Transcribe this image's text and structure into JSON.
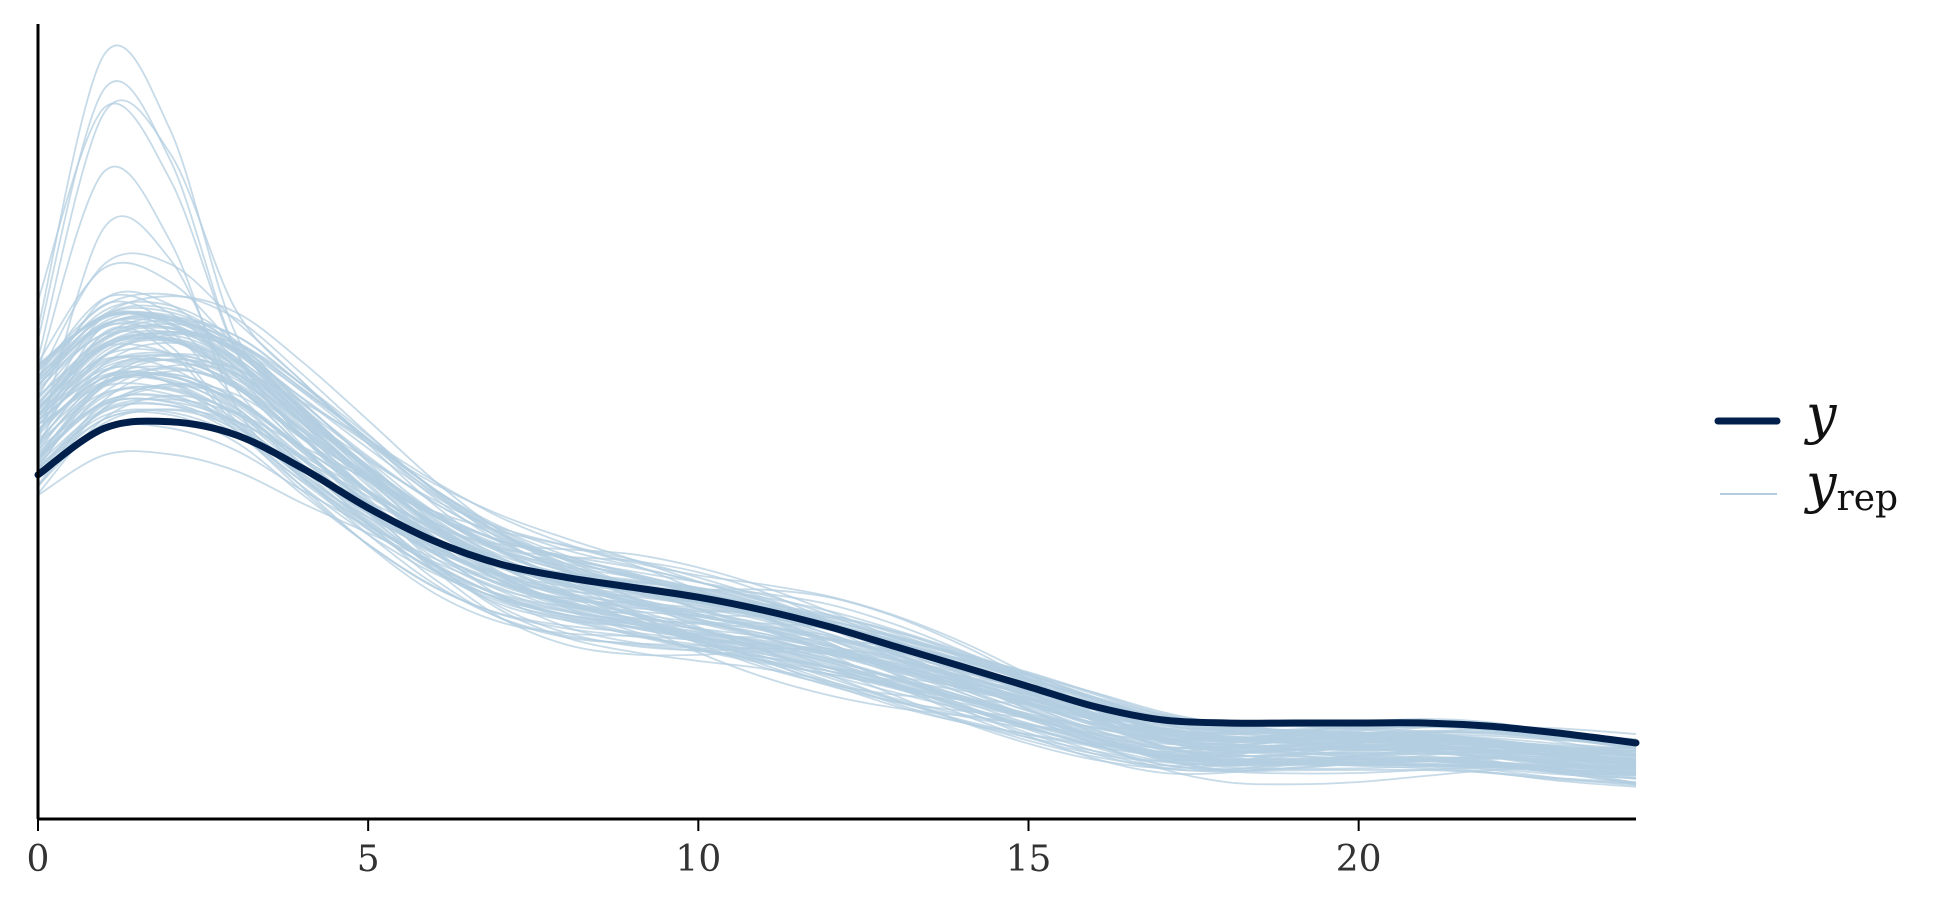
{
  "chart_data": {
    "type": "line",
    "title": "",
    "xlabel": "",
    "ylabel": "",
    "xlim": [
      0,
      24.2
    ],
    "ylim": [
      0,
      0.121
    ],
    "x_ticks": [
      0,
      5,
      10,
      15,
      20
    ],
    "x_tick_labels": [
      "0",
      "5",
      "10",
      "15",
      "20"
    ],
    "y_axis_tick_labels_shown": false,
    "grid": false,
    "legend_position": "right",
    "legend": [
      {
        "symbol": "y",
        "subscript": "",
        "style": "thick-line"
      },
      {
        "symbol": "y",
        "subscript": "rep",
        "style": "thin-line"
      }
    ],
    "colors": {
      "y": "#011f4b",
      "y_rep": "#b3cde0"
    },
    "series": [
      {
        "key": "y",
        "x": [
          0,
          1,
          2,
          3,
          4,
          5,
          6,
          7,
          8,
          9,
          10,
          11,
          12,
          13,
          14,
          15,
          16,
          17,
          18,
          19,
          20,
          21,
          22,
          23,
          24.2
        ],
        "values": [
          0.052,
          0.059,
          0.06,
          0.058,
          0.053,
          0.047,
          0.042,
          0.0385,
          0.0365,
          0.035,
          0.0335,
          0.0315,
          0.029,
          0.026,
          0.023,
          0.02,
          0.017,
          0.015,
          0.0145,
          0.0145,
          0.0145,
          0.0145,
          0.014,
          0.013,
          0.0115
        ]
      }
    ],
    "replicates": {
      "key": "y_rep",
      "count": 100,
      "x": [
        0,
        1,
        2,
        3,
        4,
        5,
        6,
        7,
        8,
        9,
        10,
        11,
        12,
        13,
        14,
        15,
        16,
        17,
        18,
        19,
        20,
        21,
        22,
        23,
        24.2
      ],
      "mean_values": [
        0.06,
        0.069,
        0.07,
        0.066,
        0.058,
        0.05,
        0.043,
        0.038,
        0.035,
        0.033,
        0.031,
        0.029,
        0.0265,
        0.0235,
        0.0205,
        0.0175,
        0.0145,
        0.012,
        0.011,
        0.011,
        0.011,
        0.011,
        0.0105,
        0.0095,
        0.0085
      ],
      "spread": 0.012,
      "max_peak": 0.12
    }
  }
}
